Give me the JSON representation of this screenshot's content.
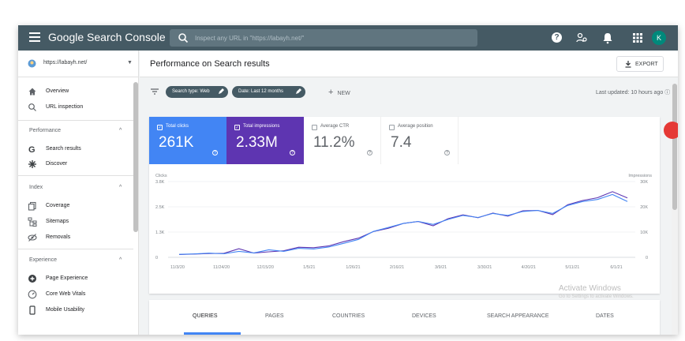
{
  "header": {
    "title": "Google Search Console",
    "search_placeholder": "Inspect any URL in \"https://labayh.net/\"",
    "avatar_letter": "K"
  },
  "sidebar": {
    "property": "https://labayh.net/",
    "items": [
      {
        "label": "Overview",
        "icon": "home-icon"
      },
      {
        "label": "URL inspection",
        "icon": "search-icon"
      }
    ],
    "sections": [
      {
        "label": "Performance",
        "items": [
          {
            "label": "Search results",
            "icon": "google-g-icon"
          },
          {
            "label": "Discover",
            "icon": "asterisk-icon"
          }
        ]
      },
      {
        "label": "Index",
        "items": [
          {
            "label": "Coverage",
            "icon": "copy-icon"
          },
          {
            "label": "Sitemaps",
            "icon": "sitemap-icon"
          },
          {
            "label": "Removals",
            "icon": "removal-icon"
          }
        ]
      },
      {
        "label": "Experience",
        "items": [
          {
            "label": "Page Experience",
            "icon": "plus-circle-icon"
          },
          {
            "label": "Core Web Vitals",
            "icon": "gauge-icon"
          },
          {
            "label": "Mobile Usability",
            "icon": "phone-icon"
          }
        ]
      }
    ]
  },
  "main": {
    "title": "Performance on Search results",
    "export_label": "EXPORT",
    "filters": [
      "Search type: Web",
      "Date: Last 12 months"
    ],
    "new_label": "NEW",
    "last_updated": "Last updated: 10 hours ago",
    "metrics": [
      {
        "label": "Total clicks",
        "value": "261K",
        "checked": true
      },
      {
        "label": "Total impressions",
        "value": "2.33M",
        "checked": true
      },
      {
        "label": "Average CTR",
        "value": "11.2%",
        "checked": false
      },
      {
        "label": "Average position",
        "value": "7.4",
        "checked": false
      }
    ],
    "tabs": [
      "QUERIES",
      "PAGES",
      "COUNTRIES",
      "DEVICES",
      "SEARCH APPEARANCE",
      "DATES"
    ],
    "watermark": [
      "Activate Windows",
      "Go to Settings to activate Windows."
    ]
  },
  "chart_data": {
    "type": "line",
    "left_axis": {
      "title": "Clicks",
      "ticks": [
        "3.8K",
        "2.5K",
        "1.3K",
        "0"
      ],
      "range": [
        0,
        3800
      ]
    },
    "right_axis": {
      "title": "Impressions",
      "ticks": [
        "30K",
        "20K",
        "10K",
        "0"
      ],
      "range": [
        0,
        30000
      ]
    },
    "x_tick_labels": [
      "11/3/20",
      "11/24/20",
      "12/15/20",
      "1/5/21",
      "1/26/21",
      "2/16/21",
      "3/9/21",
      "3/30/21",
      "4/20/21",
      "5/11/21",
      "6/1/21"
    ],
    "series": [
      {
        "name": "Clicks",
        "color": "#4285f4",
        "axis": "left",
        "values": [
          150,
          170,
          210,
          180,
          300,
          220,
          380,
          300,
          450,
          420,
          520,
          700,
          900,
          1300,
          1500,
          1700,
          1800,
          1650,
          1900,
          2100,
          2000,
          2200,
          2100,
          2300,
          2350,
          2200,
          2600,
          2800,
          2900,
          3150,
          2800
        ]
      },
      {
        "name": "Impressions",
        "color": "#5e35b1",
        "axis": "right",
        "values": [
          1100,
          1300,
          1500,
          1600,
          3400,
          1700,
          2200,
          2600,
          4000,
          3800,
          4500,
          6200,
          7600,
          10200,
          11500,
          13400,
          14200,
          12500,
          15300,
          16800,
          15700,
          17500,
          16300,
          18400,
          18600,
          16900,
          20800,
          22500,
          23600,
          26000,
          23500
        ]
      }
    ]
  }
}
